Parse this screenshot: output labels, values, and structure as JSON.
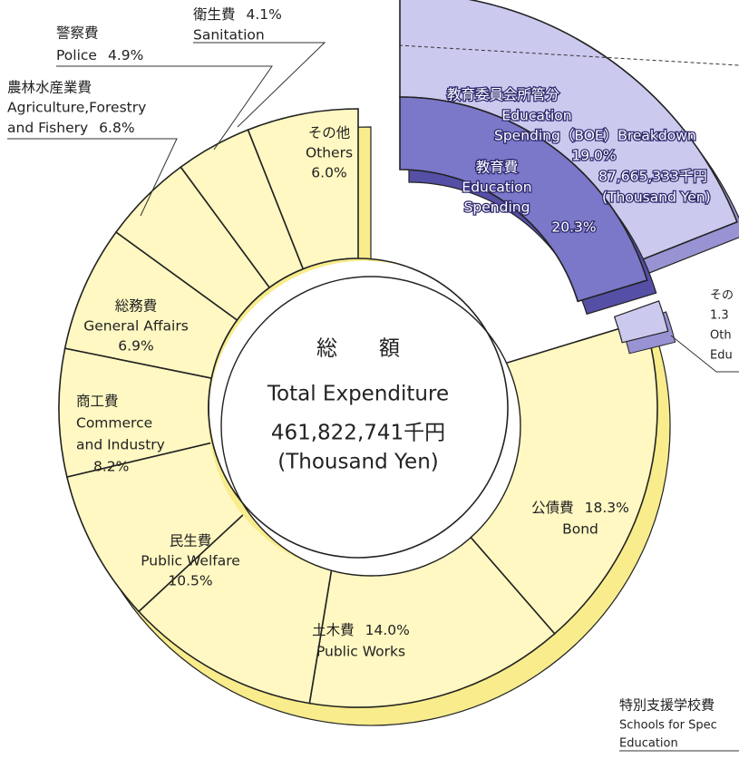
{
  "chart_data": {
    "type": "donut",
    "center_lines": [
      "総　　額",
      "Total Expenditure",
      "461,822,741千円",
      "(Thousand Yen)"
    ],
    "segments": [
      {
        "label_lines": [
          "教育費",
          "Education",
          "Spending"
        ],
        "value": 20.3,
        "value_label": "20.3%",
        "color": "#7b77c9",
        "side_color": "#554fa6"
      },
      {
        "label_lines": [
          "公債費",
          "Bond"
        ],
        "value": 18.3,
        "value_label": "18.3%",
        "color": "#fff8c2",
        "side_color": "#f8ec8c"
      },
      {
        "label_lines": [
          "土木費",
          "Public Works"
        ],
        "value": 14.0,
        "value_label": "14.0%",
        "color": "#fff8c2",
        "side_color": "#f8ec8c"
      },
      {
        "label_lines": [
          "民生費",
          "Public Welfare"
        ],
        "value": 10.5,
        "value_label": "10.5%",
        "color": "#fff8c2",
        "side_color": "#f8ec8c"
      },
      {
        "label_lines": [
          "商工費",
          "Commerce",
          "and Industry"
        ],
        "value": 8.2,
        "value_label": "8.2%",
        "color": "#fff8c2",
        "side_color": "#f8ec8c"
      },
      {
        "label_lines": [
          "総務費",
          "General Affairs"
        ],
        "value": 6.9,
        "value_label": "6.9%",
        "color": "#fff8c2",
        "side_color": "#f8ec8c"
      },
      {
        "label_lines": [
          "農林水産業費",
          "Agriculture,Forestry",
          "and Fishery"
        ],
        "value": 6.8,
        "value_label": "6.8%",
        "color": "#fff8c2",
        "side_color": "#f8ec8c"
      },
      {
        "label_lines": [
          "警察費",
          "Police"
        ],
        "value": 4.9,
        "value_label": "4.9%",
        "color": "#fff8c2",
        "side_color": "#f8ec8c"
      },
      {
        "label_lines": [
          "衛生費",
          "Sanitation"
        ],
        "value": 4.1,
        "value_label": "4.1%",
        "color": "#fff8c2",
        "side_color": "#f8ec8c"
      },
      {
        "label_lines": [
          "その他",
          "Others"
        ],
        "value": 6.0,
        "value_label": "6.0%",
        "color": "#fff8c2",
        "side_color": "#f8ec8c"
      }
    ],
    "breakdown": {
      "label_lines": [
        "教育委員会所管分",
        "Education",
        "Spending（BOE）Breakdown"
      ],
      "value": 19.0,
      "value_label": "19.0%",
      "amount_label": "87,665,333千円",
      "unit_label": "(Thousand Yen)",
      "color": "#ccc9ef",
      "side_color": "#9893d2"
    },
    "other_education": {
      "label_lines": [
        "その",
        "1.3",
        "Oth",
        "Edu"
      ],
      "color": "#ccc9ef",
      "side_color": "#9893d2"
    },
    "special_schools": {
      "label_lines": [
        "特別支援学校費",
        "Schools for Spec",
        "Education"
      ]
    }
  }
}
